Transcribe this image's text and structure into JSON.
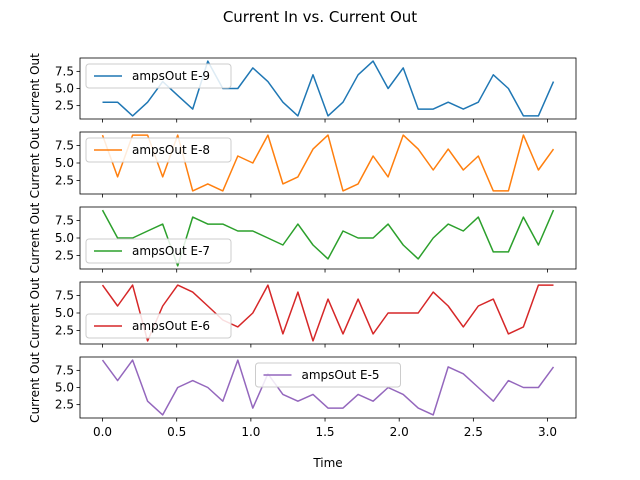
{
  "chart_data": {
    "type": "line",
    "title": "Current In vs. Current Out",
    "xlabel": "Time",
    "ylabel": "Current Out",
    "xlim": [
      -0.152,
      3.192
    ],
    "ylim": [
      0.55,
      9.45
    ],
    "x_ticks": [
      0.0,
      0.5,
      1.0,
      1.5,
      2.0,
      2.5,
      3.0
    ],
    "x_tick_labels": [
      "0.0",
      "0.5",
      "1.0",
      "1.5",
      "2.0",
      "2.5",
      "3.0"
    ],
    "y_ticks": [
      2.5,
      5.0,
      7.5
    ],
    "y_tick_labels": [
      "2.5",
      "5.0",
      "7.5"
    ],
    "x": [
      0.0,
      0.1013,
      0.2027,
      0.304,
      0.4053,
      0.5067,
      0.608,
      0.7093,
      0.8107,
      0.912,
      1.0133,
      1.1147,
      1.216,
      1.3173,
      1.4187,
      1.52,
      1.6213,
      1.7227,
      1.824,
      1.9253,
      2.0267,
      2.128,
      2.2293,
      2.3307,
      2.432,
      2.5333,
      2.6347,
      2.736,
      2.8373,
      2.9387,
      3.04
    ],
    "series": [
      {
        "name": "ampsOut E-9",
        "color": "#1f77b4",
        "values": [
          3,
          3,
          1,
          3,
          6,
          4,
          2,
          9,
          5,
          5,
          8,
          6,
          3,
          1,
          7,
          1,
          3,
          7,
          9,
          5,
          8,
          2,
          2,
          3,
          2,
          3,
          7,
          5,
          1,
          1,
          6
        ]
      },
      {
        "name": "ampsOut E-8",
        "color": "#ff7f0e",
        "values": [
          9,
          3,
          9,
          9,
          3,
          9,
          1,
          2,
          1,
          6,
          5,
          9,
          2,
          3,
          7,
          9,
          1,
          2,
          6,
          3,
          9,
          7,
          4,
          7,
          4,
          6,
          1,
          1,
          9,
          4,
          7
        ]
      },
      {
        "name": "ampsOut E-7",
        "color": "#2ca02c",
        "values": [
          9,
          5,
          5,
          6,
          7,
          1,
          8,
          7,
          7,
          6,
          6,
          5,
          4,
          7,
          4,
          2,
          6,
          5,
          5,
          7,
          4,
          2,
          5,
          7,
          6,
          8,
          3,
          3,
          8,
          4,
          9
        ]
      },
      {
        "name": "ampsOut E-6",
        "color": "#d62728",
        "values": [
          9,
          6,
          9,
          1,
          6,
          9,
          8,
          6,
          4,
          3,
          5,
          9,
          2,
          8,
          1,
          7,
          2,
          7,
          2,
          5,
          5,
          5,
          8,
          6,
          3,
          6,
          7,
          2,
          3,
          9,
          9
        ]
      },
      {
        "name": "ampsOut E-5",
        "color": "#9467bd",
        "values": [
          9,
          6,
          9,
          3,
          1,
          5,
          6,
          5,
          3,
          9,
          2,
          7,
          4,
          3,
          4,
          2,
          2,
          4,
          3,
          5,
          4,
          2,
          1,
          8,
          7,
          5,
          3,
          6,
          5,
          5,
          8
        ]
      }
    ],
    "legend_positions": [
      "upper left",
      "upper left",
      "lower left",
      "lower left",
      "upper center"
    ],
    "grid": false,
    "sharex": true
  }
}
